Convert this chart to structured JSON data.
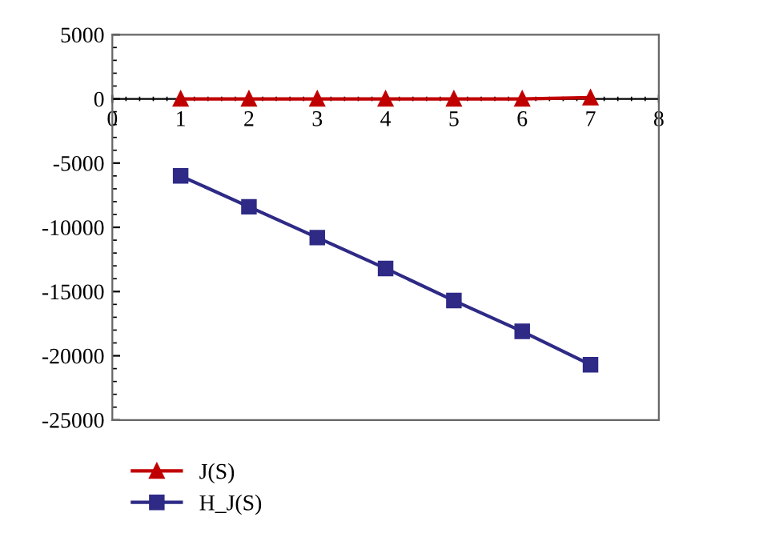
{
  "chart_data": {
    "type": "line",
    "x": [
      1,
      2,
      3,
      4,
      5,
      6,
      7
    ],
    "series": [
      {
        "name": "J(S)",
        "color": "#c00000",
        "marker": "triangle",
        "values": [
          0,
          0,
          0,
          0,
          0,
          0,
          100
        ]
      },
      {
        "name": "H_J(S)",
        "color": "#2e2a86",
        "marker": "square",
        "values": [
          -6000,
          -8400,
          -10800,
          -13200,
          -15700,
          -18100,
          -20700
        ]
      }
    ],
    "xlim": [
      0,
      8
    ],
    "xticks": [
      0,
      1,
      2,
      3,
      4,
      5,
      6,
      7,
      8
    ],
    "ylim": [
      -25000,
      5000
    ],
    "yticks": [
      -25000,
      -20000,
      -15000,
      -10000,
      -5000,
      0,
      5000
    ],
    "grid": false,
    "legend": "bottom",
    "line_style": "solid"
  }
}
